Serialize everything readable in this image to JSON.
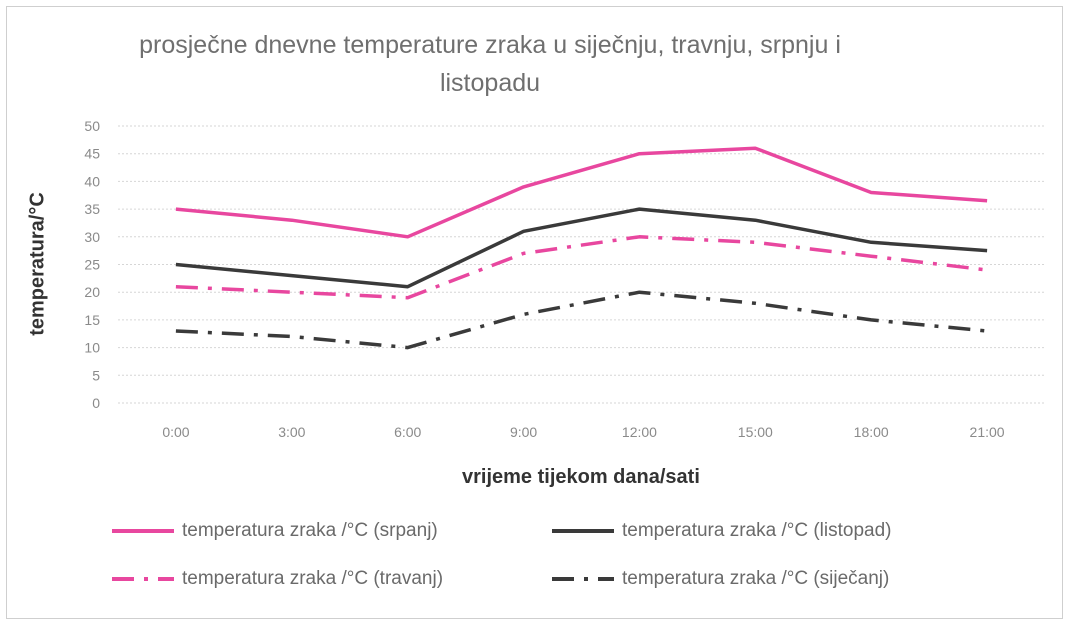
{
  "chart_data": {
    "type": "line",
    "title": "prosječne dnevne temperature zraka u siječnju, travnju, srpnju i listopadu",
    "xlabel": "vrijeme tijekom dana/sati",
    "ylabel": "temperatura/°C",
    "categories": [
      "0:00",
      "3:00",
      "6:00",
      "9:00",
      "12:00",
      "15:00",
      "18:00",
      "21:00"
    ],
    "ylim": [
      0,
      50
    ],
    "yticks": [
      "0",
      "5",
      "10",
      "15",
      "20",
      "25",
      "30",
      "35",
      "40",
      "45",
      "50"
    ],
    "grid": "horizontal dotted",
    "legend_position": "bottom",
    "series": [
      {
        "name": "temperatura zraka /°C (srpanj)",
        "values": [
          35,
          33,
          30,
          39,
          45,
          46,
          38,
          36.5
        ],
        "color": "#e8479f",
        "dash": "solid"
      },
      {
        "name": "temperatura zraka /°C (listopad)",
        "values": [
          25,
          23,
          21,
          31,
          35,
          33,
          29,
          27.5
        ],
        "color": "#3a3a3a",
        "dash": "solid"
      },
      {
        "name": "temperatura zraka /°C (travanj)",
        "values": [
          21,
          20,
          19,
          27,
          30,
          29,
          26.5,
          24
        ],
        "color": "#e8479f",
        "dash": "dashdot"
      },
      {
        "name": "temperatura zraka /°C (siječanj)",
        "values": [
          13,
          12,
          10,
          16,
          20,
          18,
          15,
          13
        ],
        "color": "#3a3a3a",
        "dash": "dashdot"
      }
    ]
  }
}
